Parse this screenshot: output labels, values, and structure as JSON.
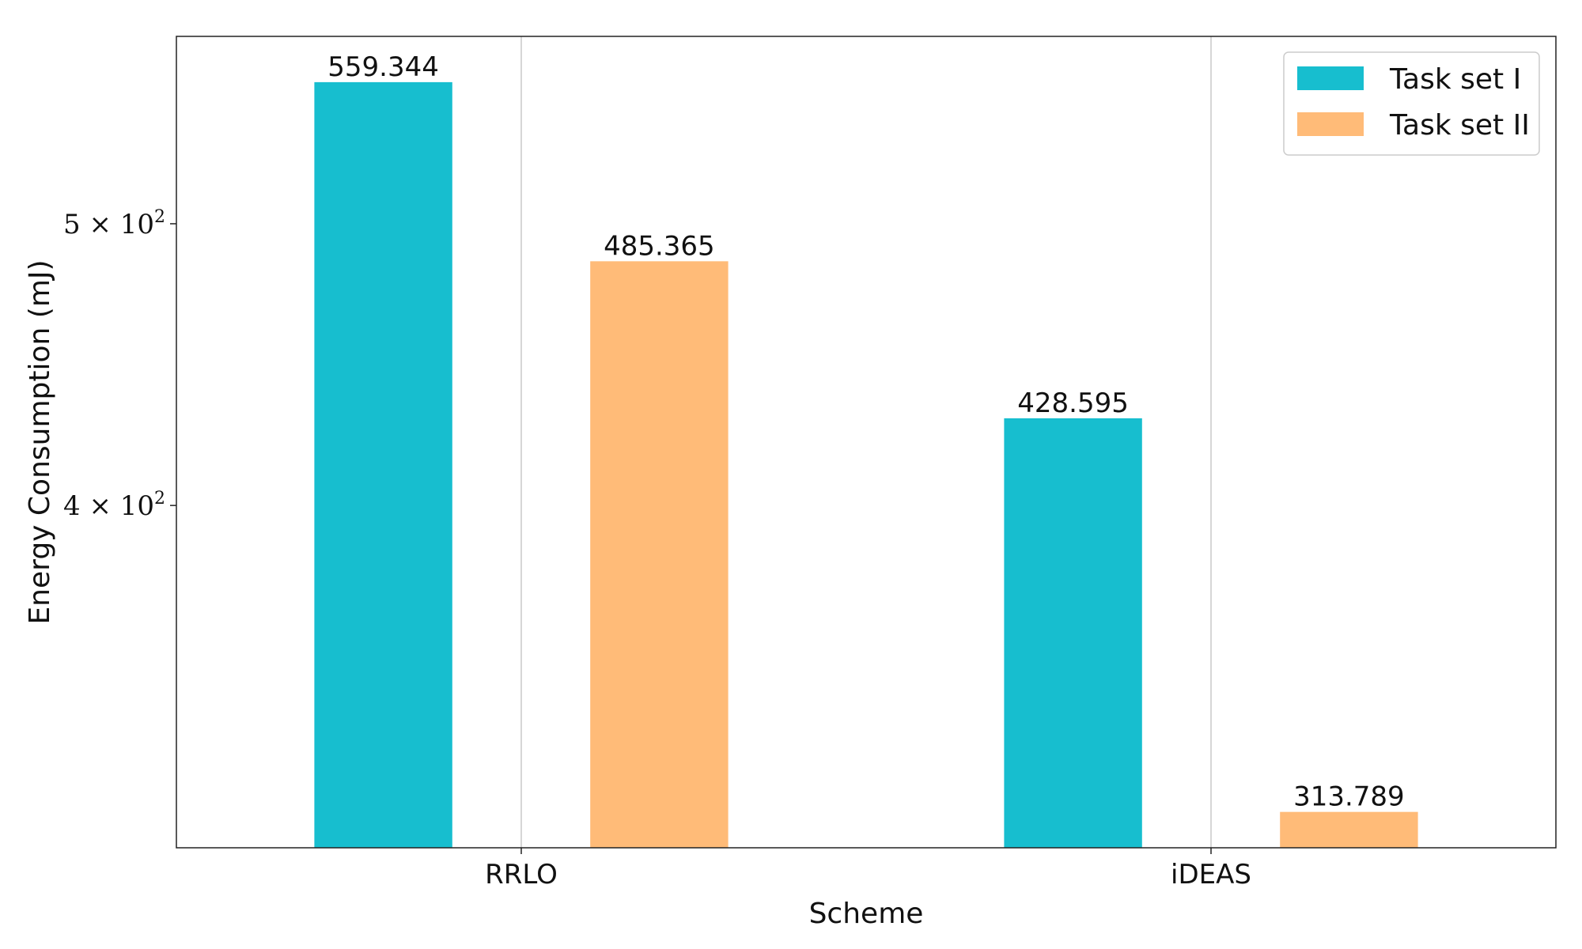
{
  "chart_data": {
    "type": "bar",
    "categories": [
      "RRLO",
      "iDEAS"
    ],
    "series": [
      {
        "name": "Task set I",
        "values": [
          559.344,
          428.595
        ],
        "color": "#17becf"
      },
      {
        "name": "Task set II",
        "values": [
          485.365,
          313.789
        ],
        "color": "#ffbb78"
      }
    ],
    "value_labels": [
      [
        "559.344",
        "428.595"
      ],
      [
        "485.365",
        "313.789"
      ]
    ],
    "xlabel": "Scheme",
    "ylabel": "Energy Consumption (mJ)",
    "yscale": "log",
    "ylim": [
      305,
      580
    ],
    "yticks": [
      {
        "value": 400,
        "mantissa": "4",
        "exponent": "2"
      },
      {
        "value": 500,
        "mantissa": "5",
        "exponent": "2"
      }
    ],
    "grid": "x",
    "legend_position": "top-right"
  }
}
